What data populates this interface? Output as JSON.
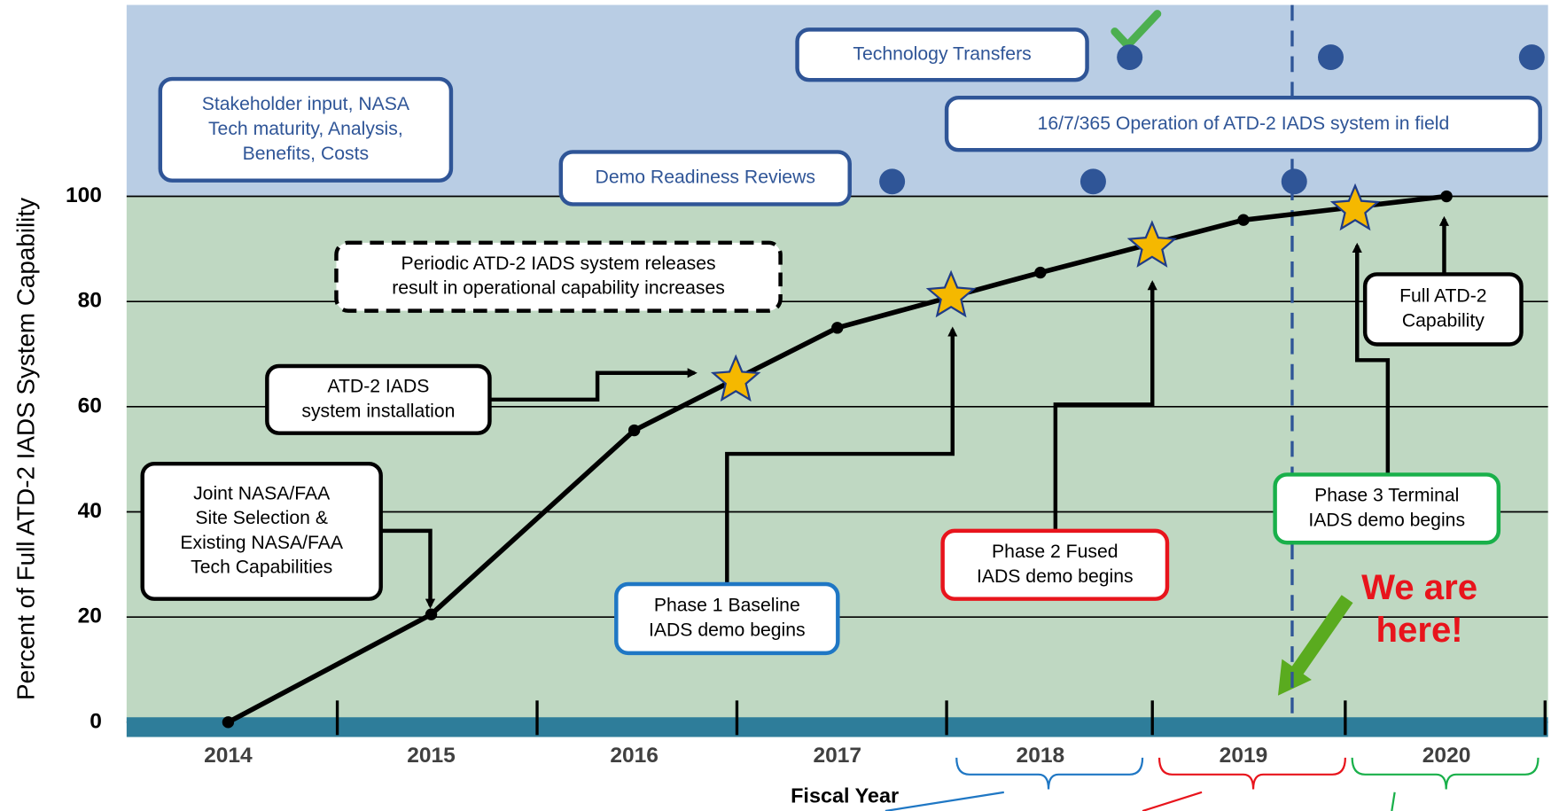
{
  "chart_data": {
    "type": "line",
    "y_label": "Percent of Full ATD-2 IADS System Capability",
    "x_label": "Fiscal Year",
    "xlim": [
      2013.5,
      2020.5
    ],
    "xticks": [
      2014,
      2015,
      2016,
      2017,
      2018,
      2019,
      2020
    ],
    "ylim": [
      0,
      100
    ],
    "yticks": [
      0,
      20,
      40,
      60,
      80,
      100
    ],
    "grid": true,
    "series": [
      {
        "x": [
          2014,
          2015,
          2016,
          2017,
          2018,
          2019,
          2020
        ],
        "values": [
          0,
          20.5,
          55.5,
          75,
          85.5,
          95.5,
          100
        ],
        "color": "#000000"
      }
    ],
    "releases": {
      "x": [
        2016.5,
        2017.56,
        2018.55,
        2019.55
      ],
      "values": [
        65,
        81,
        90.5,
        97.5
      ],
      "color": "#f5b800"
    },
    "milestones": [
      {
        "label": "Demo Readiness Reviews",
        "x": [
          2017.27,
          2018.26,
          2019.25
        ],
        "color": "#2f5597"
      },
      {
        "label": "Technology Transfers",
        "x": [
          2018.44,
          2019.43,
          2020.42
        ],
        "color": "#2f5597"
      }
    ],
    "operation_label": "16/7/365 Operation of ATD-2 IADS system in field",
    "current_x": 2019.24,
    "current_label": [
      "We are",
      "here!"
    ],
    "annotations": [
      {
        "lines": [
          "Stakeholder input, NASA",
          "Tech maturity, Analysis,",
          "Benefits, Costs"
        ],
        "color": "#2f5597"
      },
      {
        "lines": [
          "Periodic ATD-2 IADS system releases",
          "result in operational capability increases"
        ],
        "color": "#000000"
      },
      {
        "lines": [
          "ATD-2 IADS",
          "system installation"
        ],
        "color": "#000000"
      },
      {
        "lines": [
          "Joint NASA/FAA",
          "Site Selection &",
          "Existing NASA/FAA",
          "Tech Capabilities"
        ],
        "color": "#000000"
      },
      {
        "lines": [
          "Phase 1 Baseline",
          "IADS demo begins"
        ],
        "color": "#1f77c4"
      },
      {
        "lines": [
          "Phase 2 Fused",
          "IADS demo begins"
        ],
        "color": "#e8141c"
      },
      {
        "lines": [
          "Phase 3 Terminal",
          "IADS demo begins"
        ],
        "color": "#19b04a"
      },
      {
        "lines": [
          "Full ATD-2",
          "Capability"
        ],
        "color": "#000000"
      }
    ]
  }
}
